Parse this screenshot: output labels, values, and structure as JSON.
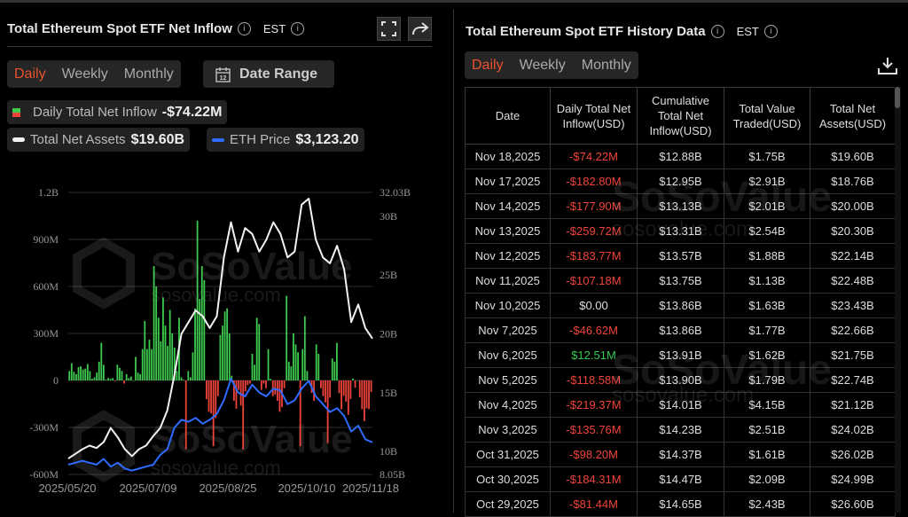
{
  "left": {
    "title": "Total Ethereum Spot ETF Net Inflow",
    "tz": "EST",
    "tabs": [
      {
        "label": "Daily",
        "active": true
      },
      {
        "label": "Weekly",
        "active": false
      },
      {
        "label": "Monthly",
        "active": false
      }
    ],
    "date_range_label": "Date Range",
    "calendar_day": "12",
    "legend": {
      "inflow_label": "Daily Total Net Inflow",
      "inflow_value": "-$74.22M",
      "assets_label": "Total Net Assets",
      "assets_value": "$19.60B",
      "eth_label": "ETH Price",
      "eth_value": "$3,123.20"
    },
    "watermark": {
      "brand": "SoSoValue",
      "site": "sosovalue.com"
    }
  },
  "chart_data": {
    "type": "bar+line",
    "xticks": [
      "2025/05/20",
      "2025/07/09",
      "2025/08/25",
      "2025/10/10",
      "2025/11/18"
    ],
    "yticks_left": [
      "1.2B",
      "900M",
      "600M",
      "300M",
      "0",
      "-300M",
      "-600M"
    ],
    "ylim_left_millions": [
      -600,
      1200
    ],
    "yticks_right": [
      "32.03B",
      "30B",
      "25B",
      "20B",
      "15B",
      "10B",
      "8.05B"
    ],
    "ylim_right_billions": [
      8.05,
      32.03
    ],
    "grid": true,
    "colors": {
      "positive": "#3ecb4f",
      "negative": "#f0443a",
      "assets": "#f2f2f2",
      "eth": "#2f6bff"
    },
    "daily_net_inflow_millions": [
      60,
      110,
      55,
      40,
      85,
      90,
      70,
      75,
      105,
      60,
      10,
      20,
      50,
      120,
      240,
      100,
      5,
      15,
      10,
      15,
      -5,
      100,
      80,
      60,
      -20,
      40,
      15,
      25,
      0,
      150,
      50,
      40,
      200,
      380,
      200,
      260,
      200,
      730,
      600,
      400,
      250,
      530,
      350,
      220,
      450,
      300,
      210,
      60,
      400,
      20,
      5,
      -440,
      60,
      20,
      180,
      460,
      1020,
      520,
      730,
      640,
      -120,
      -200,
      -210,
      -420,
      -240,
      -100,
      290,
      350,
      440,
      460,
      300,
      30,
      -130,
      -180,
      -60,
      -160,
      -440,
      -70,
      -30,
      -20,
      170,
      100,
      400,
      360,
      -60,
      -20,
      -50,
      200,
      10,
      -100,
      -90,
      -130,
      -200,
      -170,
      -50,
      540,
      120,
      90,
      300,
      230,
      180,
      -420,
      200,
      410,
      60,
      -10,
      -80,
      -130,
      230,
      170,
      -50,
      -100,
      -140,
      -400,
      -110,
      140,
      120,
      240,
      -81.44,
      -184.31,
      -98.2,
      -135.76,
      -219.37,
      -118.58,
      12.51,
      -46.62,
      0,
      -107.18,
      -183.77,
      -259.72,
      -177.9,
      -182.8,
      -74.22
    ],
    "total_net_assets_billions": [
      9.4,
      9.8,
      10.2,
      10.5,
      10.3,
      10.8,
      12.0,
      11.2,
      10.2,
      9.6,
      10.2,
      10.5,
      11.3,
      12.0,
      13.5,
      16.5,
      20.0,
      21.0,
      22.0,
      21.5,
      20.5,
      21.5,
      26.5,
      29.5,
      27.0,
      29.0,
      28.5,
      27.0,
      28.0,
      29.5,
      28.5,
      26.5,
      27.0,
      31.0,
      31.5,
      28.0,
      26.5,
      26.0,
      27.5,
      25.5,
      21.0,
      22.5,
      20.5,
      19.6
    ],
    "eth_price_usd": [
      2550,
      2600,
      2650,
      2600,
      2550,
      2700,
      2500,
      2600,
      2450,
      2400,
      2450,
      2500,
      2550,
      2800,
      2950,
      3500,
      3700,
      3650,
      3750,
      3600,
      3700,
      3850,
      4200,
      4750,
      4400,
      4300,
      4600,
      4400,
      4300,
      4500,
      4450,
      4100,
      4200,
      4500,
      4700,
      4300,
      4100,
      3900,
      4000,
      3800,
      3400,
      3550,
      3200,
      3123.2
    ]
  },
  "right": {
    "title": "Total Ethereum Spot ETF History Data",
    "tz": "EST",
    "tabs": [
      {
        "label": "Daily",
        "active": true
      },
      {
        "label": "Weekly",
        "active": false
      },
      {
        "label": "Monthly",
        "active": false
      }
    ],
    "columns": [
      "Date",
      "Daily Total Net Inflow(USD)",
      "Cumulative Total Net Inflow(USD)",
      "Total Value Traded(USD)",
      "Total Net Assets(USD)"
    ],
    "rows": [
      [
        "Nov 18,2025",
        "-$74.22M",
        "$12.88B",
        "$1.75B",
        "$19.60B"
      ],
      [
        "Nov 17,2025",
        "-$182.80M",
        "$12.95B",
        "$2.91B",
        "$18.76B"
      ],
      [
        "Nov 14,2025",
        "-$177.90M",
        "$13.13B",
        "$2.01B",
        "$20.00B"
      ],
      [
        "Nov 13,2025",
        "-$259.72M",
        "$13.31B",
        "$2.54B",
        "$20.30B"
      ],
      [
        "Nov 12,2025",
        "-$183.77M",
        "$13.57B",
        "$1.88B",
        "$22.14B"
      ],
      [
        "Nov 11,2025",
        "-$107.18M",
        "$13.75B",
        "$1.13B",
        "$22.48B"
      ],
      [
        "Nov 10,2025",
        "$0.00",
        "$13.86B",
        "$1.63B",
        "$23.43B"
      ],
      [
        "Nov 7,2025",
        "-$46.62M",
        "$13.86B",
        "$1.77B",
        "$22.66B"
      ],
      [
        "Nov 6,2025",
        "$12.51M",
        "$13.91B",
        "$1.62B",
        "$21.75B"
      ],
      [
        "Nov 5,2025",
        "-$118.58M",
        "$13.90B",
        "$1.79B",
        "$22.74B"
      ],
      [
        "Nov 4,2025",
        "-$219.37M",
        "$14.01B",
        "$4.15B",
        "$21.12B"
      ],
      [
        "Nov 3,2025",
        "-$135.76M",
        "$14.23B",
        "$2.51B",
        "$24.02B"
      ],
      [
        "Oct 31,2025",
        "-$98.20M",
        "$14.37B",
        "$1.61B",
        "$26.02B"
      ],
      [
        "Oct 30,2025",
        "-$184.31M",
        "$14.47B",
        "$2.09B",
        "$24.99B"
      ],
      [
        "Oct 29,2025",
        "-$81.44M",
        "$14.65B",
        "$2.43B",
        "$26.60B"
      ]
    ]
  }
}
